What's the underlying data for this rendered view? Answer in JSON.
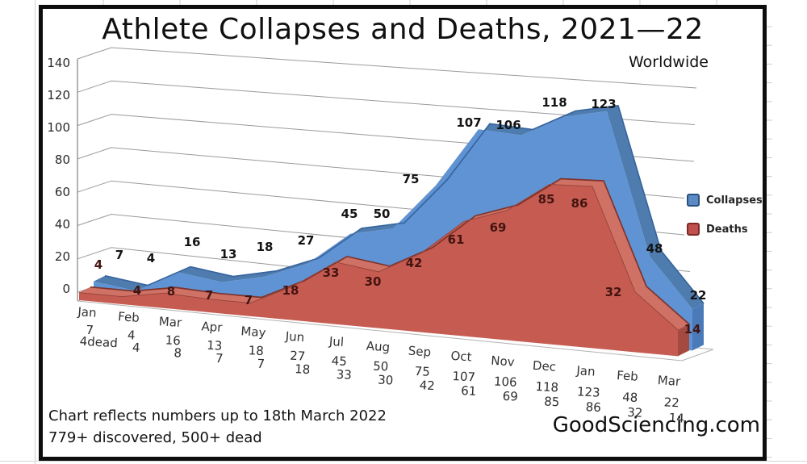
{
  "title": "Athlete Collapses and Deaths, 2021—22",
  "subtitle": "Worldwide",
  "legend": {
    "collapses": "Collapses",
    "deaths": "Deaths"
  },
  "footer": {
    "line1": "Chart reflects numbers up to 18th March 2022",
    "line2": "779+ discovered, 500+ dead",
    "brand": "GoodSciencing.com"
  },
  "y_axis": {
    "ticks": [
      "140",
      "120",
      "100",
      "80",
      "60",
      "40",
      "20",
      "0"
    ]
  },
  "x_axis": {
    "month_labels": [
      "Jan",
      "Feb",
      "Mar",
      "Apr",
      "May",
      "Jun",
      "Jul",
      "Aug",
      "Sep",
      "Oct",
      "Nov",
      "Dec",
      "Jan",
      "Feb",
      "Mar"
    ],
    "collapses_labels": [
      "7",
      "4",
      "16",
      "13",
      "18",
      "27",
      "45",
      "50",
      "75",
      "107",
      "106",
      "118",
      "123",
      "48",
      "22"
    ],
    "deaths_labels": [
      "4dead",
      "4",
      "8",
      "7",
      "7",
      "18",
      "33",
      "30",
      "42",
      "61",
      "69",
      "85",
      "86",
      "32",
      "14"
    ]
  },
  "chart_data": {
    "type": "area",
    "style": "excel-3d-stacked-look",
    "categories": [
      "Jan",
      "Feb",
      "Mar",
      "Apr",
      "May",
      "Jun",
      "Jul",
      "Aug",
      "Sep",
      "Oct",
      "Nov",
      "Dec",
      "Jan",
      "Feb",
      "Mar"
    ],
    "series": [
      {
        "name": "Collapses",
        "color": "#5f93d3",
        "values": [
          7,
          4,
          16,
          13,
          18,
          27,
          45,
          50,
          75,
          107,
          106,
          118,
          123,
          48,
          22
        ]
      },
      {
        "name": "Deaths",
        "color": "#c65c51",
        "values": [
          4,
          4,
          8,
          7,
          7,
          18,
          33,
          30,
          42,
          61,
          69,
          85,
          86,
          32,
          14
        ]
      }
    ],
    "title": "Athlete Collapses and Deaths, 2021—22",
    "subtitle": "Worldwide",
    "xlabel": "",
    "ylabel": "",
    "ylim": [
      0,
      140
    ],
    "y_ticks": [
      0,
      20,
      40,
      60,
      80,
      100,
      120,
      140
    ],
    "grid": "on",
    "legend_position": "middle-right"
  },
  "colors": {
    "collapses_fill": "#5f93d3",
    "collapses_top": "#4e7cae",
    "collapses_edge": "#38659e",
    "deaths_fill": "#c65c51",
    "deaths_top": "#cf7265",
    "deaths_edge": "#7e332c",
    "gridline": "#9a9a9a",
    "frame": "#0d0d0d"
  }
}
